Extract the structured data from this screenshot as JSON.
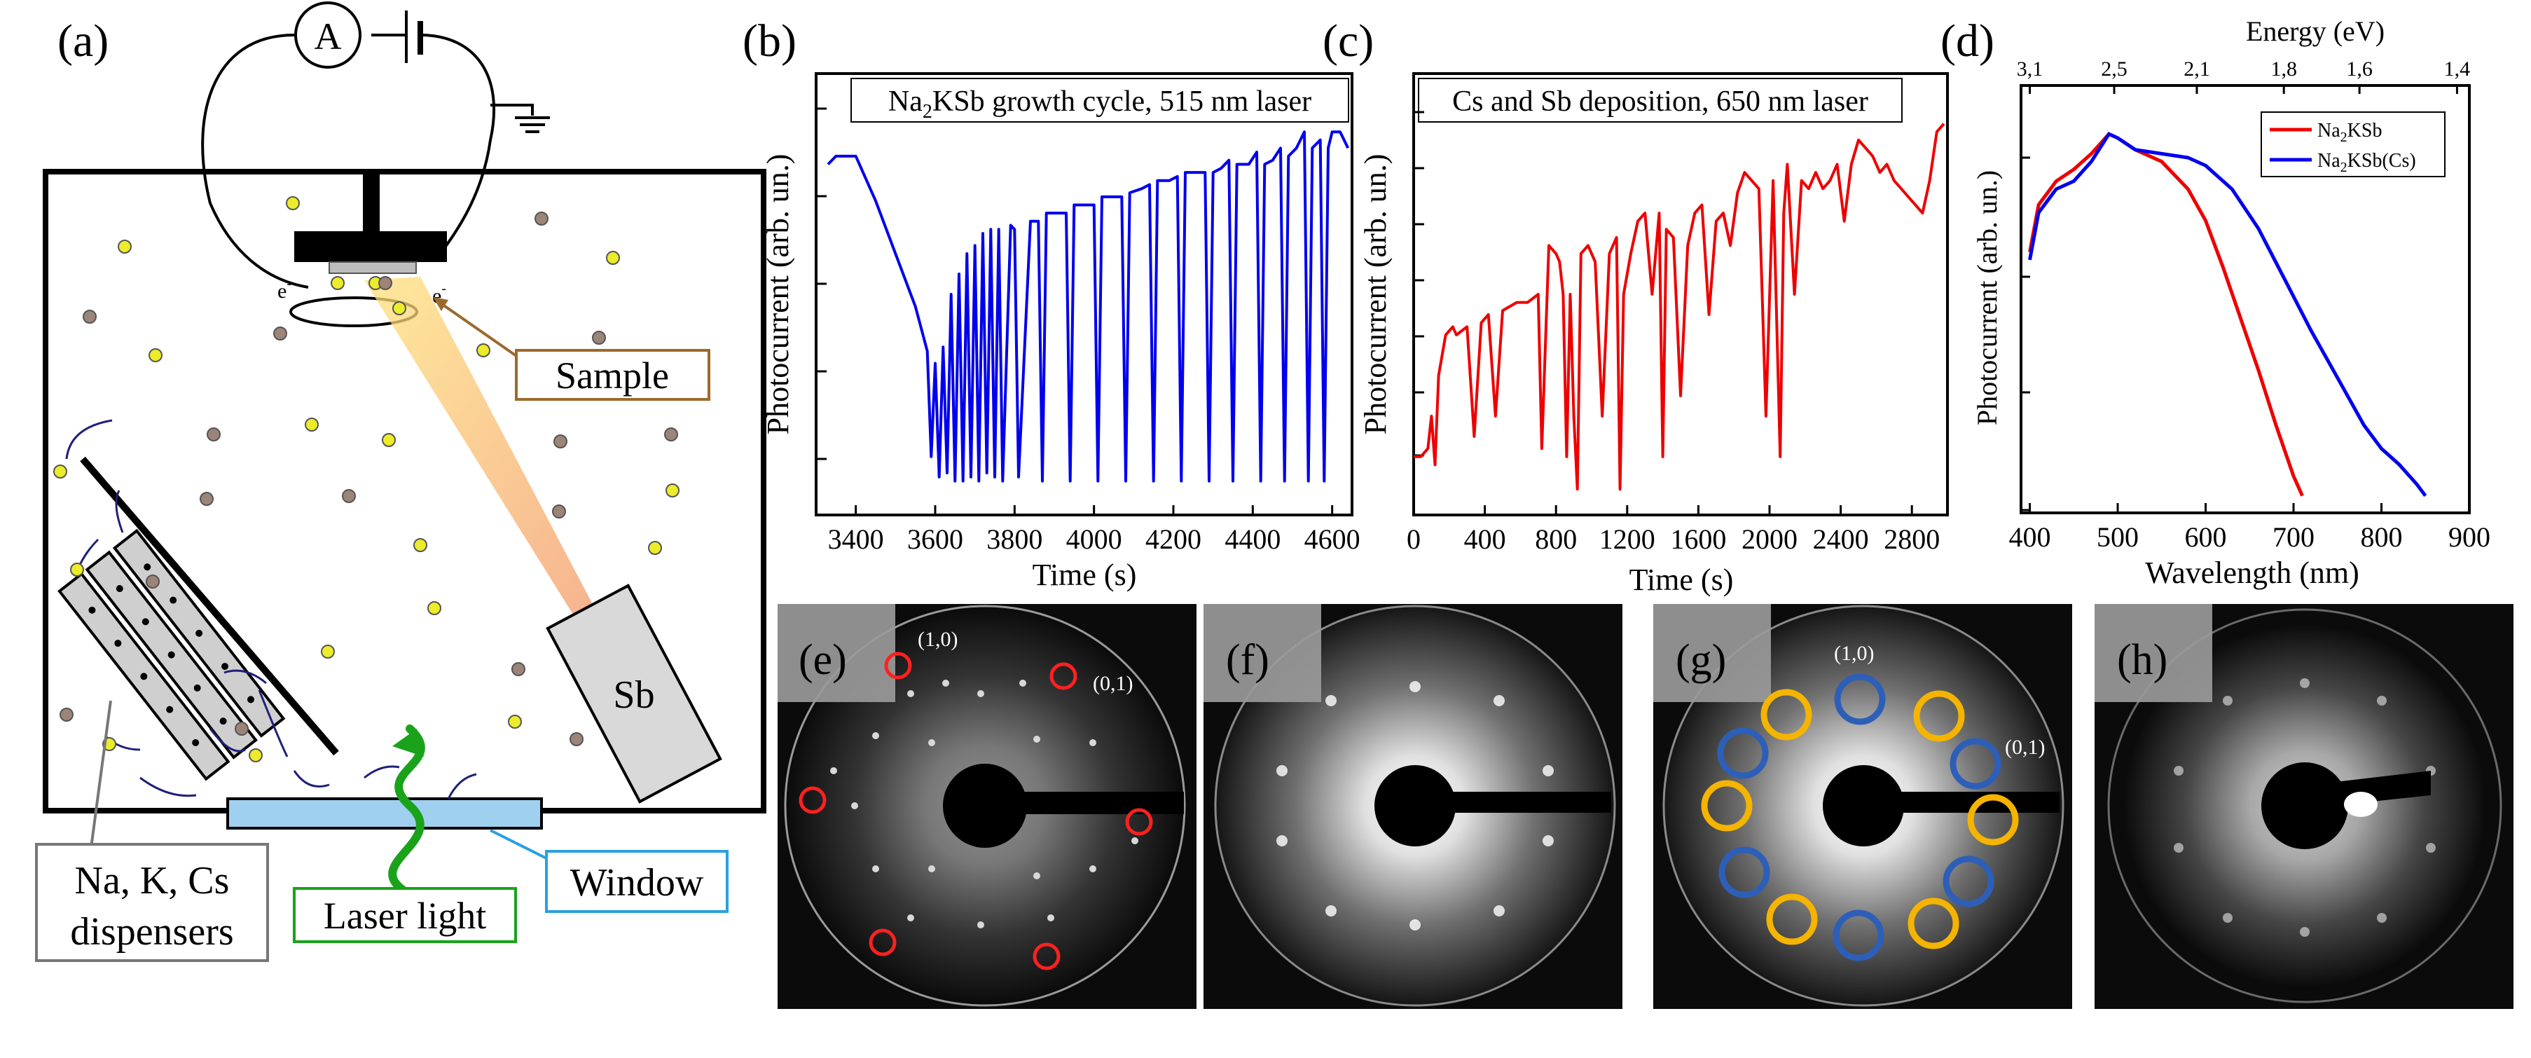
{
  "panel_labels": {
    "a": "(a)",
    "b": "(b)",
    "c": "(c)",
    "d": "(d)",
    "e": "(e)",
    "f": "(f)",
    "g": "(g)",
    "h": "(h)"
  },
  "schematic": {
    "ammeter": "A",
    "electron_left": "e",
    "electron_right": "e",
    "electron_sup": "-",
    "sample_label": "Sample",
    "sb_label": "Sb",
    "dispensers_line1": "Na, K, Cs",
    "dispensers_line2": "dispensers",
    "laser_label": "Laser light",
    "window_label": "Window"
  },
  "chart_data": [
    {
      "id": "b",
      "type": "line",
      "title_main": "Na",
      "title_sub": "2",
      "title_rest": "KSb growth cycle, 515 nm laser",
      "xlabel": "Time (s)",
      "ylabel": "Photocurrent (arb. un.)",
      "xlim": [
        3300,
        4650
      ],
      "ylim": [
        0,
        1
      ],
      "xticks": [
        "3400",
        "3600",
        "3800",
        "4000",
        "4200",
        "4400",
        "4600"
      ],
      "xtick_values": [
        3400,
        3600,
        3800,
        4000,
        4200,
        4400,
        4600
      ],
      "color": "#0000ee",
      "series": [
        {
          "name": "Na2KSb",
          "x": [
            3330,
            3350,
            3400,
            3450,
            3500,
            3550,
            3580,
            3590,
            3600,
            3610,
            3620,
            3630,
            3640,
            3650,
            3660,
            3670,
            3680,
            3690,
            3700,
            3710,
            3720,
            3730,
            3740,
            3750,
            3760,
            3770,
            3790,
            3800,
            3810,
            3840,
            3860,
            3870,
            3880,
            3910,
            3930,
            3940,
            3950,
            3990,
            4000,
            4010,
            4020,
            4050,
            4070,
            4080,
            4090,
            4120,
            4140,
            4150,
            4160,
            4190,
            4210,
            4220,
            4230,
            4260,
            4280,
            4290,
            4300,
            4320,
            4340,
            4350,
            4360,
            4390,
            4410,
            4420,
            4430,
            4450,
            4470,
            4480,
            4490,
            4510,
            4530,
            4540,
            4550,
            4570,
            4580,
            4590,
            4600,
            4620,
            4640
          ],
          "values": [
            0.82,
            0.84,
            0.84,
            0.73,
            0.6,
            0.47,
            0.36,
            0.1,
            0.33,
            0.05,
            0.37,
            0.06,
            0.5,
            0.04,
            0.55,
            0.04,
            0.6,
            0.05,
            0.62,
            0.04,
            0.65,
            0.06,
            0.66,
            0.05,
            0.66,
            0.04,
            0.67,
            0.66,
            0.05,
            0.68,
            0.68,
            0.04,
            0.7,
            0.7,
            0.7,
            0.04,
            0.72,
            0.72,
            0.72,
            0.04,
            0.74,
            0.74,
            0.74,
            0.04,
            0.75,
            0.76,
            0.77,
            0.04,
            0.78,
            0.78,
            0.79,
            0.04,
            0.8,
            0.8,
            0.8,
            0.04,
            0.8,
            0.81,
            0.83,
            0.04,
            0.82,
            0.82,
            0.85,
            0.04,
            0.82,
            0.83,
            0.86,
            0.04,
            0.84,
            0.86,
            0.9,
            0.04,
            0.86,
            0.88,
            0.04,
            0.86,
            0.9,
            0.9,
            0.86
          ]
        }
      ]
    },
    {
      "id": "c",
      "type": "line",
      "title_main": "Cs and Sb deposition, 650 nm laser",
      "xlabel": "Time (s)",
      "ylabel": "Photocurrent (arb. un.)",
      "xlim": [
        0,
        3000
      ],
      "ylim": [
        0,
        1
      ],
      "xticks": [
        "0",
        "400",
        "800",
        "1200",
        "1600",
        "2000",
        "2400",
        "2800"
      ],
      "xtick_values": [
        0,
        400,
        800,
        1200,
        1600,
        2000,
        2400,
        2800
      ],
      "color": "#ee0000",
      "series": [
        {
          "name": "Cs/Sb",
          "x": [
            0,
            40,
            80,
            100,
            120,
            140,
            180,
            220,
            240,
            300,
            340,
            380,
            420,
            460,
            500,
            540,
            580,
            640,
            700,
            720,
            760,
            800,
            820,
            840,
            860,
            880,
            900,
            920,
            940,
            980,
            1020,
            1060,
            1100,
            1140,
            1160,
            1180,
            1220,
            1260,
            1300,
            1340,
            1380,
            1400,
            1420,
            1460,
            1500,
            1540,
            1580,
            1620,
            1660,
            1700,
            1740,
            1780,
            1820,
            1860,
            1900,
            1940,
            1980,
            2020,
            2060,
            2080,
            2100,
            2140,
            2180,
            2220,
            2260,
            2300,
            2340,
            2380,
            2420,
            2460,
            2500,
            2540,
            2580,
            2620,
            2660,
            2700,
            2740,
            2780,
            2820,
            2860,
            2900,
            2940,
            2980
          ],
          "values": [
            0.1,
            0.1,
            0.12,
            0.2,
            0.08,
            0.3,
            0.4,
            0.42,
            0.4,
            0.42,
            0.15,
            0.43,
            0.45,
            0.2,
            0.46,
            0.47,
            0.48,
            0.48,
            0.5,
            0.12,
            0.62,
            0.6,
            0.58,
            0.5,
            0.1,
            0.5,
            0.2,
            0.02,
            0.6,
            0.62,
            0.58,
            0.2,
            0.6,
            0.64,
            0.02,
            0.5,
            0.6,
            0.68,
            0.7,
            0.5,
            0.7,
            0.1,
            0.66,
            0.64,
            0.25,
            0.62,
            0.7,
            0.72,
            0.45,
            0.68,
            0.7,
            0.62,
            0.75,
            0.8,
            0.78,
            0.76,
            0.2,
            0.78,
            0.1,
            0.7,
            0.82,
            0.5,
            0.78,
            0.76,
            0.8,
            0.76,
            0.78,
            0.82,
            0.68,
            0.82,
            0.88,
            0.86,
            0.84,
            0.8,
            0.82,
            0.78,
            0.76,
            0.74,
            0.72,
            0.7,
            0.78,
            0.9,
            0.92
          ]
        }
      ]
    },
    {
      "id": "d",
      "type": "line",
      "xlabel": "Wavelength (nm)",
      "ylabel": "Photocurrent (arb. un.)",
      "top_axis_label": "Energy (eV)",
      "xlim": [
        390,
        900
      ],
      "ylim": [
        0,
        1
      ],
      "xticks": [
        "400",
        "500",
        "600",
        "700",
        "800",
        "900"
      ],
      "xtick_values": [
        400,
        500,
        600,
        700,
        800,
        900
      ],
      "top_ticks": [
        "3,1",
        "2,5",
        "2,1",
        "1,8",
        "1,6",
        "1,4"
      ],
      "top_tick_values": [
        400,
        496,
        590,
        689,
        775,
        886
      ],
      "legend": {
        "placement": "top-right",
        "entries": [
          {
            "main": "Na",
            "sub": "2",
            "rest": "KSb",
            "color": "#ee0000"
          },
          {
            "main": "Na",
            "sub": "2",
            "rest": "KSb(Cs)",
            "color": "#0000ee"
          }
        ]
      },
      "series": [
        {
          "name": "Na2KSb",
          "color": "#ee0000",
          "x": [
            400,
            410,
            430,
            450,
            470,
            490,
            500,
            520,
            550,
            580,
            600,
            620,
            640,
            660,
            680,
            700,
            710
          ],
          "values": [
            0.62,
            0.74,
            0.8,
            0.83,
            0.87,
            0.92,
            0.91,
            0.88,
            0.85,
            0.78,
            0.7,
            0.58,
            0.45,
            0.32,
            0.18,
            0.05,
            0.0
          ]
        },
        {
          "name": "Na2KSb(Cs)",
          "color": "#0000ee",
          "x": [
            400,
            410,
            430,
            450,
            470,
            490,
            500,
            520,
            550,
            580,
            600,
            630,
            660,
            690,
            720,
            750,
            780,
            800,
            820,
            840,
            850
          ],
          "values": [
            0.6,
            0.72,
            0.78,
            0.8,
            0.85,
            0.92,
            0.91,
            0.88,
            0.87,
            0.86,
            0.84,
            0.78,
            0.68,
            0.55,
            0.42,
            0.3,
            0.18,
            0.12,
            0.08,
            0.03,
            0.0
          ]
        }
      ]
    }
  ],
  "leed": {
    "e": {
      "label": "(e)",
      "index_a": "(1,0)",
      "index_b": "(0,1)",
      "ring_color": "#ff2020"
    },
    "f": {
      "label": "(f)"
    },
    "g": {
      "label": "(g)",
      "index_a": "(1,0)",
      "index_b": "(0,1)",
      "ring_color_a": "#f5b400",
      "ring_color_b": "#2d5fb8"
    },
    "h": {
      "label": "(h)"
    }
  }
}
